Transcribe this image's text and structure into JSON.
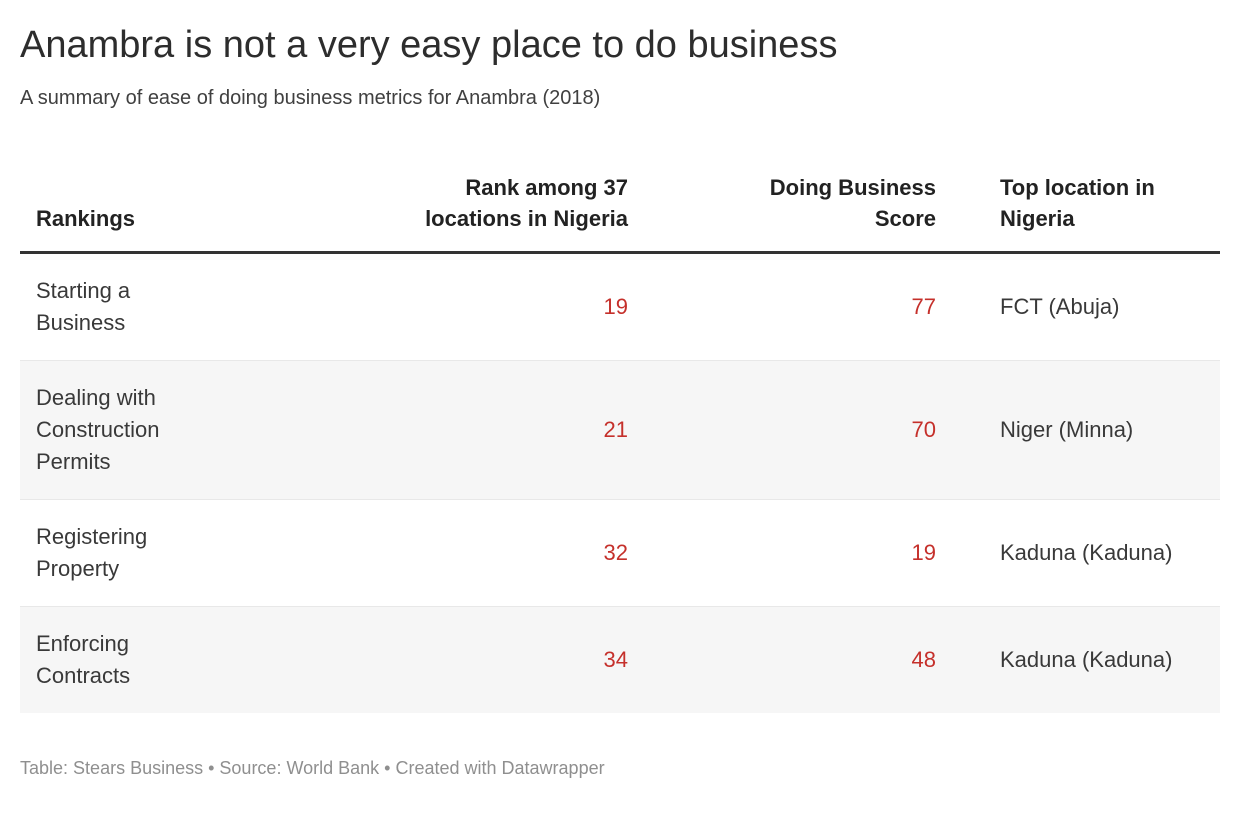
{
  "header": {
    "title": "Anambra is not a very easy place to do business",
    "subtitle": "A summary of ease of doing business metrics for Anambra (2018)"
  },
  "table": {
    "columns": [
      {
        "label": "Rankings",
        "align": "left"
      },
      {
        "label": "Rank among 37\nlocations in Nigeria",
        "align": "right"
      },
      {
        "label": "Doing Business\nScore",
        "align": "right"
      },
      {
        "label": "Top location in\nNigeria",
        "align": "left"
      }
    ],
    "rows": [
      {
        "ranking": "Starting a\nBusiness",
        "rank": "19",
        "score": "77",
        "top_location": "FCT (Abuja)"
      },
      {
        "ranking": "Dealing with\nConstruction\nPermits",
        "rank": "21",
        "score": "70",
        "top_location": "Niger (Minna)"
      },
      {
        "ranking": "Registering\nProperty",
        "rank": "32",
        "score": "19",
        "top_location": "Kaduna (Kaduna)"
      },
      {
        "ranking": "Enforcing\nContracts",
        "rank": "34",
        "score": "48",
        "top_location": "Kaduna (Kaduna)"
      }
    ]
  },
  "footer": {
    "p1": "Table: ",
    "link1": "Stears Business",
    "p2": " • Source: ",
    "link2": "World Bank",
    "p3": " • Created with ",
    "link3": "Datawrapper"
  },
  "colors": {
    "accent_number": "#c5302b",
    "zebra_row": "#f6f6f6",
    "header_rule": "#333333",
    "row_divider": "#e8e8e8",
    "title_text": "#2d2d2d",
    "body_text": "#393939",
    "footer_text": "#8f8f8f"
  },
  "chart_data": {
    "type": "table",
    "title": "Anambra is not a very easy place to do business",
    "subtitle": "A summary of ease of doing business metrics for Anambra (2018)",
    "columns": [
      "Rankings",
      "Rank among 37 locations in Nigeria",
      "Doing Business Score",
      "Top location in Nigeria"
    ],
    "rows": [
      [
        "Starting a Business",
        19,
        77,
        "FCT (Abuja)"
      ],
      [
        "Dealing with Construction Permits",
        21,
        70,
        "Niger (Minna)"
      ],
      [
        "Registering Property",
        32,
        19,
        "Kaduna (Kaduna)"
      ],
      [
        "Enforcing Contracts",
        34,
        48,
        "Kaduna (Kaduna)"
      ]
    ],
    "footer": "Table: Stears Business • Source: World Bank • Created with Datawrapper",
    "layout_hints": {
      "zebra_striping": true,
      "numeric_columns_color": "#c5302b",
      "numeric_columns_align": "right"
    }
  }
}
